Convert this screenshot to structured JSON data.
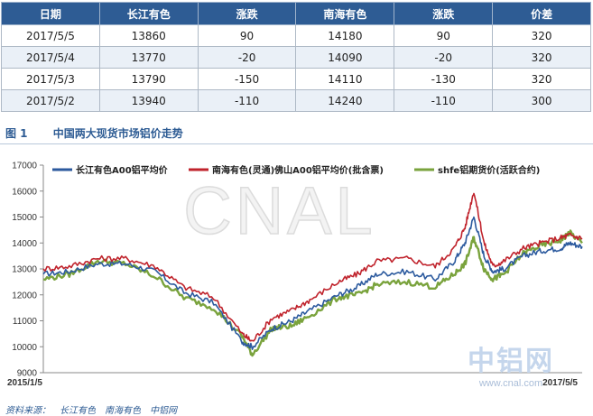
{
  "table": {
    "headers": [
      "日期",
      "长江有色",
      "涨跌",
      "南海有色",
      "涨跌",
      "价差"
    ],
    "rows": [
      [
        "2017/5/5",
        "13860",
        "90",
        "14180",
        "90",
        "320"
      ],
      [
        "2017/5/4",
        "13770",
        "-20",
        "14090",
        "-20",
        "320"
      ],
      [
        "2017/5/3",
        "13790",
        "-150",
        "14110",
        "-130",
        "320"
      ],
      [
        "2017/5/2",
        "13940",
        "-110",
        "14240",
        "-110",
        "300"
      ]
    ]
  },
  "figure": {
    "label": "图 1",
    "title": "中国两大现货市场铝价走势"
  },
  "chart_data": {
    "type": "line",
    "title": "",
    "xlabel": "",
    "ylabel": "",
    "x_start_label": "2015/1/5",
    "x_end_label": "2017/5/5",
    "ylim": [
      9000,
      17000
    ],
    "yticks": [
      9000,
      10000,
      11000,
      12000,
      13000,
      14000,
      15000,
      16000,
      17000
    ],
    "x_key_points": [
      "2015/1/5",
      "2015/2/15",
      "2015/4/1",
      "2015/5/15",
      "2015/7/1",
      "2015/8/15",
      "2015/10/1",
      "2015/11/15",
      "2015/12/1",
      "2016/1/1",
      "2016/2/1",
      "2016/3/1",
      "2016/4/15",
      "2016/5/15",
      "2016/6/15",
      "2016/8/1",
      "2016/9/15",
      "2016/10/15",
      "2016/11/1",
      "2016/11/15",
      "2016/12/1",
      "2016/12/15",
      "2017/1/1",
      "2017/2/1",
      "2017/3/1",
      "2017/4/1",
      "2017/4/15",
      "2017/5/5"
    ],
    "series": [
      {
        "name": "长江有色A00铝平均价",
        "color": "#2c5a9e",
        "values": [
          12800,
          12900,
          13200,
          13200,
          12900,
          12100,
          11700,
          10200,
          10000,
          10700,
          11000,
          11400,
          12000,
          12300,
          12800,
          12900,
          12600,
          13300,
          14000,
          15000,
          13500,
          12900,
          13000,
          13500,
          13700,
          13800,
          14000,
          13860
        ]
      },
      {
        "name": "南海有色(灵通)佛山A00铝平均价(批含票)",
        "color": "#c0232c",
        "values": [
          13000,
          13100,
          13400,
          13400,
          13100,
          12300,
          11900,
          10500,
          10200,
          11100,
          11400,
          11800,
          12500,
          12800,
          13300,
          13400,
          13100,
          13800,
          14600,
          16000,
          14000,
          13100,
          13300,
          13800,
          14000,
          14200,
          14300,
          14180
        ]
      },
      {
        "name": "shfe铝期货价(活跃合约)",
        "color": "#7aa33d",
        "values": [
          12600,
          12800,
          13300,
          13200,
          12700,
          11900,
          11500,
          10400,
          9700,
          10700,
          10800,
          11200,
          11900,
          12000,
          12400,
          12500,
          12300,
          12800,
          13200,
          14200,
          13000,
          12600,
          12800,
          13600,
          13900,
          14100,
          14400,
          14000
        ]
      }
    ]
  },
  "watermark": "CNAL",
  "logo": {
    "text": "中铝网",
    "url": "www.cnal.com"
  },
  "source": {
    "label": "资料来源：",
    "items": [
      "长江有色",
      "南海有色",
      "中铝网"
    ]
  }
}
